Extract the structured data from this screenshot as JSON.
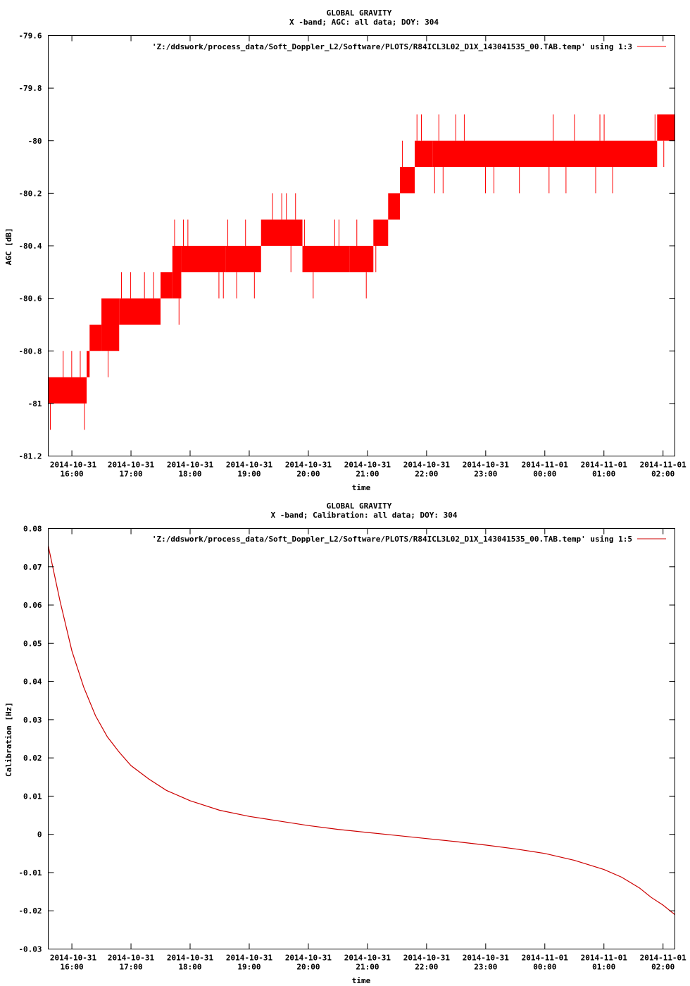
{
  "chart_data": [
    {
      "type": "line",
      "title": "GLOBAL GRAVITY",
      "subtitle": "X -band; AGC: all data; DOY: 304",
      "xlabel": "time",
      "ylabel": "AGC [dB]",
      "legend_label": "'Z:/ddswork/process_data/Soft_Doppler_L2/Software/PLOTS/R84ICL3L02_D1X_143041535_00.TAB.temp' using 1:3",
      "legend_position": "top-right",
      "color": "#ff0000",
      "grid": false,
      "xlim": [
        15.6,
        26.2
      ],
      "ylim": [
        -81.2,
        -79.6
      ],
      "x_ticks": [
        {
          "x": 16,
          "date": "2014-10-31",
          "time": "16:00"
        },
        {
          "x": 17,
          "date": "2014-10-31",
          "time": "17:00"
        },
        {
          "x": 18,
          "date": "2014-10-31",
          "time": "18:00"
        },
        {
          "x": 19,
          "date": "2014-10-31",
          "time": "19:00"
        },
        {
          "x": 20,
          "date": "2014-10-31",
          "time": "20:00"
        },
        {
          "x": 21,
          "date": "2014-10-31",
          "time": "21:00"
        },
        {
          "x": 22,
          "date": "2014-10-31",
          "time": "22:00"
        },
        {
          "x": 23,
          "date": "2014-10-31",
          "time": "23:00"
        },
        {
          "x": 24,
          "date": "2014-11-01",
          "time": "00:00"
        },
        {
          "x": 25,
          "date": "2014-11-01",
          "time": "01:00"
        },
        {
          "x": 26,
          "date": "2014-11-01",
          "time": "02:00"
        }
      ],
      "y_ticks": [
        {
          "v": -79.6,
          "label": "-79.6"
        },
        {
          "v": -79.8,
          "label": "-79.8"
        },
        {
          "v": -80.0,
          "label": "-80"
        },
        {
          "v": -80.2,
          "label": "-80.2"
        },
        {
          "v": -80.4,
          "label": "-80.4"
        },
        {
          "v": -80.6,
          "label": "-80.6"
        },
        {
          "v": -80.8,
          "label": "-80.8"
        },
        {
          "v": -81.0,
          "label": "-81"
        },
        {
          "v": -81.2,
          "label": "-81.2"
        }
      ],
      "bands": [
        {
          "x0": 15.6,
          "x1": 16.25,
          "low": -81.0,
          "high": -80.9
        },
        {
          "x0": 16.25,
          "x1": 16.3,
          "low": -80.9,
          "high": -80.8
        },
        {
          "x0": 16.3,
          "x1": 16.5,
          "low": -80.8,
          "high": -80.7
        },
        {
          "x0": 16.5,
          "x1": 16.8,
          "low": -80.8,
          "high": -80.6
        },
        {
          "x0": 16.8,
          "x1": 17.5,
          "low": -80.7,
          "high": -80.6
        },
        {
          "x0": 17.5,
          "x1": 17.7,
          "low": -80.6,
          "high": -80.5
        },
        {
          "x0": 17.7,
          "x1": 17.85,
          "low": -80.6,
          "high": -80.4
        },
        {
          "x0": 17.85,
          "x1": 18.6,
          "low": -80.5,
          "high": -80.4
        },
        {
          "x0": 18.6,
          "x1": 19.2,
          "low": -80.5,
          "high": -80.4
        },
        {
          "x0": 19.2,
          "x1": 19.9,
          "low": -80.4,
          "high": -80.3
        },
        {
          "x0": 19.9,
          "x1": 20.7,
          "low": -80.5,
          "high": -80.4
        },
        {
          "x0": 20.7,
          "x1": 21.1,
          "low": -80.5,
          "high": -80.4
        },
        {
          "x0": 21.1,
          "x1": 21.35,
          "low": -80.4,
          "high": -80.3
        },
        {
          "x0": 21.35,
          "x1": 21.55,
          "low": -80.3,
          "high": -80.2
        },
        {
          "x0": 21.55,
          "x1": 21.8,
          "low": -80.2,
          "high": -80.1
        },
        {
          "x0": 21.8,
          "x1": 22.1,
          "low": -80.1,
          "high": -80.0
        },
        {
          "x0": 22.1,
          "x1": 25.9,
          "low": -80.1,
          "high": -80.0
        },
        {
          "x0": 25.9,
          "x1": 26.2,
          "low": -80.0,
          "high": -79.9
        }
      ]
    },
    {
      "type": "line",
      "title": "GLOBAL GRAVITY",
      "subtitle": "X -band; Calibration: all data; DOY: 304",
      "xlabel": "time",
      "ylabel": "Calibration [Hz]",
      "legend_label": "'Z:/ddswork/process_data/Soft_Doppler_L2/Software/PLOTS/R84ICL3L02_D1X_143041535_00.TAB.temp' using 1:5",
      "legend_position": "top-right",
      "color": "#cc0000",
      "grid": false,
      "xlim": [
        15.6,
        26.2
      ],
      "ylim": [
        -0.03,
        0.08
      ],
      "x_ticks": [
        {
          "x": 16,
          "date": "2014-10-31",
          "time": "16:00"
        },
        {
          "x": 17,
          "date": "2014-10-31",
          "time": "17:00"
        },
        {
          "x": 18,
          "date": "2014-10-31",
          "time": "18:00"
        },
        {
          "x": 19,
          "date": "2014-10-31",
          "time": "19:00"
        },
        {
          "x": 20,
          "date": "2014-10-31",
          "time": "20:00"
        },
        {
          "x": 21,
          "date": "2014-10-31",
          "time": "21:00"
        },
        {
          "x": 22,
          "date": "2014-10-31",
          "time": "22:00"
        },
        {
          "x": 23,
          "date": "2014-10-31",
          "time": "23:00"
        },
        {
          "x": 24,
          "date": "2014-11-01",
          "time": "00:00"
        },
        {
          "x": 25,
          "date": "2014-11-01",
          "time": "01:00"
        },
        {
          "x": 26,
          "date": "2014-11-01",
          "time": "02:00"
        }
      ],
      "y_ticks": [
        {
          "v": 0.08,
          "label": "0.08"
        },
        {
          "v": 0.07,
          "label": "0.07"
        },
        {
          "v": 0.06,
          "label": "0.06"
        },
        {
          "v": 0.05,
          "label": "0.05"
        },
        {
          "v": 0.04,
          "label": "0.04"
        },
        {
          "v": 0.03,
          "label": "0.03"
        },
        {
          "v": 0.02,
          "label": "0.02"
        },
        {
          "v": 0.01,
          "label": "0.01"
        },
        {
          "v": 0.0,
          "label": "0"
        },
        {
          "v": -0.01,
          "label": "-0.01"
        },
        {
          "v": -0.02,
          "label": "-0.02"
        },
        {
          "v": -0.03,
          "label": "-0.03"
        }
      ],
      "x": [
        15.6,
        15.8,
        16.0,
        16.2,
        16.4,
        16.6,
        16.8,
        17.0,
        17.3,
        17.6,
        18.0,
        18.5,
        19.0,
        19.5,
        20.0,
        20.5,
        21.0,
        21.5,
        22.0,
        22.5,
        23.0,
        23.5,
        24.0,
        24.5,
        25.0,
        25.3,
        25.6,
        25.8,
        26.0,
        26.2
      ],
      "values": [
        0.0755,
        0.061,
        0.048,
        0.0385,
        0.031,
        0.0255,
        0.0215,
        0.018,
        0.0145,
        0.0115,
        0.0088,
        0.0063,
        0.0047,
        0.0035,
        0.0023,
        0.0013,
        0.0005,
        -0.0003,
        -0.0011,
        -0.0019,
        -0.0028,
        -0.0038,
        -0.005,
        -0.0068,
        -0.0092,
        -0.0112,
        -0.014,
        -0.0165,
        -0.0185,
        -0.021
      ]
    }
  ]
}
